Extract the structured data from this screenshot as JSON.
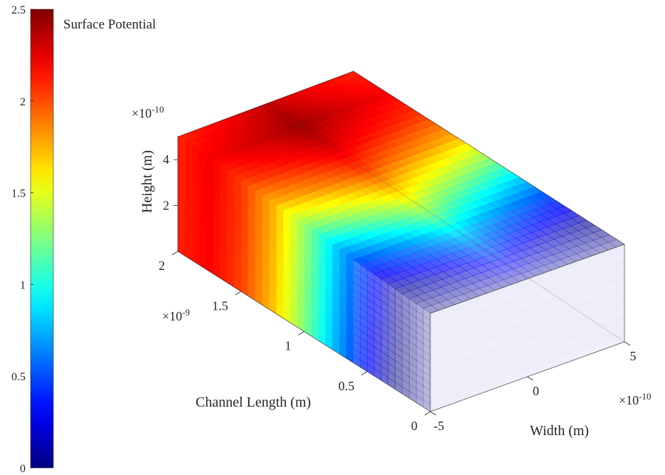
{
  "chart_data": {
    "type": "heatmap",
    "title": "",
    "colorbar": {
      "label": "Surface Potential",
      "range": [
        0,
        2.5
      ],
      "ticks": [
        "0",
        "0.5",
        "1",
        "1.5",
        "2",
        "2.5"
      ],
      "colormap": "jet"
    },
    "axes": {
      "x": {
        "label": "Channel Length (m)",
        "exponent": "×10⁻⁹",
        "range": [
          0,
          2e-09
        ],
        "ticks": [
          "0",
          "0.5",
          "1",
          "1.5",
          "2"
        ]
      },
      "y": {
        "label": "Width (m)",
        "exponent": "×10⁻¹⁰",
        "range": [
          -5e-10,
          5e-10
        ],
        "ticks": [
          "-5",
          "0",
          "5"
        ]
      },
      "z": {
        "label": "Height (m)",
        "exponent": "×10⁻¹⁰",
        "range": [
          0,
          5e-10
        ],
        "ticks": [
          "2",
          "4"
        ]
      }
    },
    "surface_potential_profile": {
      "channel_length_points": [
        0,
        0.25,
        0.5,
        0.75,
        1.0,
        1.25,
        1.5,
        1.75,
        2.0
      ],
      "center_potential": [
        0.1,
        0.45,
        0.85,
        1.3,
        1.7,
        2.05,
        2.3,
        2.45,
        2.35
      ],
      "edge_potential": [
        0.0,
        0.05,
        0.4,
        0.8,
        1.3,
        1.75,
        2.05,
        2.2,
        2.1
      ]
    },
    "legend": "colorbar-left",
    "grid": false
  }
}
